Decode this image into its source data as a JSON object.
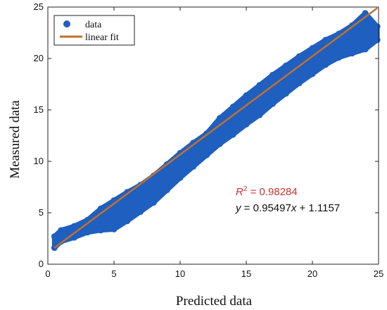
{
  "chart_data": {
    "type": "scatter",
    "xlabel": "Predicted data",
    "ylabel": "Measured data",
    "xlim": [
      0,
      25
    ],
    "ylim": [
      0,
      25
    ],
    "x_ticks": [
      "0",
      "5",
      "10",
      "15",
      "20",
      "25"
    ],
    "y_ticks": [
      "0",
      "5",
      "10",
      "15",
      "20",
      "25"
    ],
    "grid": false,
    "legend_position": "top-left",
    "series": [
      {
        "name": "data",
        "color": "#1f5fbf",
        "envelope": {
          "x": [
            0.5,
            1,
            2,
            3,
            4,
            5,
            6,
            7,
            8,
            9,
            10,
            11,
            12,
            13,
            14,
            15,
            16,
            17,
            18,
            19,
            20,
            21,
            22,
            23,
            24,
            24.9
          ],
          "y_min": [
            1.6,
            2.2,
            2.6,
            3.1,
            3.3,
            3.4,
            4.2,
            5.1,
            6.0,
            7.2,
            8.4,
            9.5,
            10.6,
            11.7,
            12.6,
            13.6,
            14.5,
            15.6,
            16.6,
            17.6,
            18.5,
            19.4,
            20.1,
            20.5,
            20.9,
            21.8
          ],
          "y_max": [
            2.7,
            3.3,
            3.7,
            4.3,
            5.4,
            6.2,
            7.0,
            7.7,
            8.6,
            9.7,
            10.8,
            11.8,
            12.7,
            14.2,
            15.3,
            16.4,
            17.4,
            18.4,
            19.3,
            20.2,
            21.0,
            21.8,
            22.4,
            23.2,
            24.4,
            23.1
          ]
        }
      },
      {
        "name": "linear fit",
        "color": "#c0702e",
        "slope": 0.95497,
        "intercept": 1.1157,
        "x_range": [
          0.5,
          24.9
        ]
      }
    ],
    "annotations": {
      "r2_label": "R",
      "r2_sup": "2",
      "r2_value": " = 0.98284",
      "r2_color": "#cc3333",
      "eq_y": "y",
      "eq_mid": " = 0.95497",
      "eq_x": "x",
      "eq_tail": " + 1.1157"
    }
  }
}
